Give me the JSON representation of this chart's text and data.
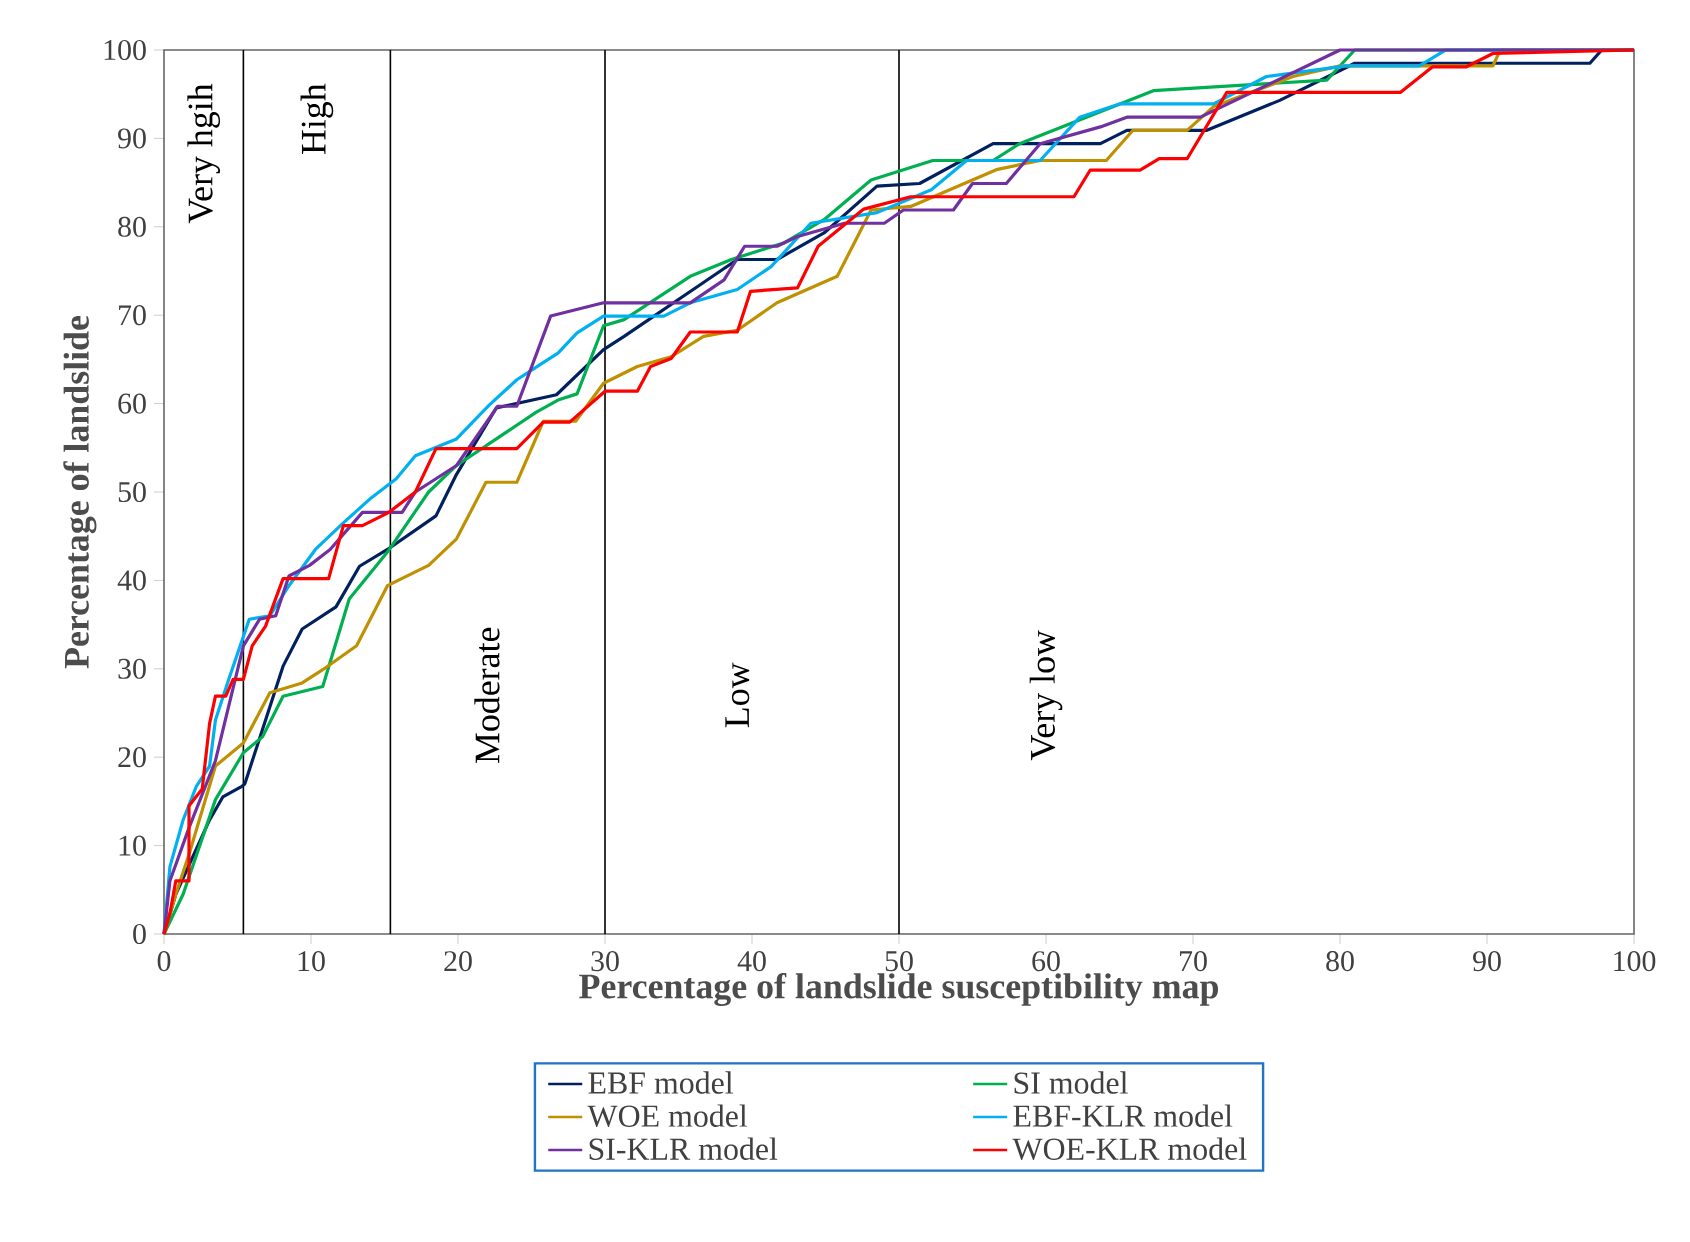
{
  "chart_data": {
    "type": "line",
    "xlabel": "Percentage of landslide susceptibility map",
    "ylabel": "Percentage of landslide",
    "xlim": [
      0,
      100
    ],
    "ylim": [
      0,
      100
    ],
    "xticks": [
      0,
      10,
      20,
      30,
      40,
      50,
      60,
      70,
      80,
      90,
      100
    ],
    "yticks": [
      0,
      10,
      20,
      30,
      40,
      50,
      60,
      70,
      80,
      90,
      100
    ],
    "legend": "bottom",
    "line_style": "solid",
    "ref_lines": [
      {
        "axis": "x",
        "value": 5.4,
        "color": "#000000"
      },
      {
        "axis": "x",
        "value": 15.4,
        "color": "#000000"
      },
      {
        "axis": "x",
        "value": 30,
        "color": "#000000"
      },
      {
        "axis": "x",
        "value": 50,
        "color": "#000000"
      }
    ],
    "annotations": [
      "Very hgih",
      "High",
      "Moderate",
      "Low",
      "Very low"
    ],
    "series": [
      {
        "name": "EBF model",
        "color": "#002060",
        "x": [
          0,
          0.8,
          3.1,
          4,
          5.3,
          5.5,
          8.1,
          9.4,
          11.7,
          13.3,
          15.2,
          18.5,
          19.9,
          22.6,
          26.7,
          29.9,
          31.3,
          36.7,
          39,
          41.7,
          44.9,
          48.5,
          51.4,
          56.4,
          63.7,
          65.5,
          70.9,
          75.9,
          81,
          97,
          97.8,
          100
        ],
        "values": [
          0,
          4.5,
          12.9,
          15.5,
          16.7,
          17,
          30.3,
          34.5,
          37,
          41.6,
          43.5,
          47.3,
          52,
          59.5,
          61,
          66.1,
          67.6,
          73.7,
          76.3,
          76.3,
          79.3,
          84.6,
          84.9,
          89.4,
          89.4,
          90.9,
          90.9,
          94.3,
          98.5,
          98.5,
          100,
          100
        ]
      },
      {
        "name": "SI model",
        "color": "#00b050",
        "x": [
          0,
          1.3,
          3.5,
          5.4,
          6.7,
          8.1,
          10.8,
          12.6,
          15.2,
          18,
          19.9,
          25.3,
          26.8,
          28.1,
          29.9,
          31.3,
          35.8,
          38.6,
          42.2,
          44.9,
          48.1,
          52.3,
          56.4,
          58.2,
          67.3,
          79.1,
          81,
          100
        ],
        "values": [
          0,
          4.5,
          15.2,
          20.5,
          22.3,
          26.9,
          28,
          37.9,
          43.2,
          50,
          53,
          59,
          60.4,
          61.1,
          68.8,
          69.5,
          74.4,
          76.3,
          78.2,
          80.8,
          85.3,
          87.5,
          87.5,
          89.4,
          95.4,
          96.6,
          100,
          100
        ]
      },
      {
        "name": "WOE model",
        "color": "#bf9000",
        "x": [
          0,
          0.8,
          1.7,
          3.5,
          5.4,
          7.2,
          9.4,
          10.8,
          13.1,
          15.2,
          18,
          19.9,
          21.9,
          24,
          25.8,
          28,
          29.9,
          32.2,
          34.5,
          36.7,
          39,
          41.7,
          45.8,
          48.1,
          50.8,
          56.7,
          59.6,
          64.1,
          65.9,
          69.6,
          71.4,
          76.8,
          80,
          90.4,
          90.9,
          100
        ],
        "values": [
          0,
          4.5,
          9,
          19,
          21.6,
          27.3,
          28.4,
          29.9,
          32.6,
          39.4,
          41.7,
          44.7,
          51.1,
          51.1,
          58,
          58,
          62.3,
          64.2,
          65.3,
          67.6,
          68.3,
          71.4,
          74.4,
          81.9,
          82.3,
          86.5,
          87.5,
          87.5,
          90.9,
          90.9,
          93.6,
          97,
          98.2,
          98.2,
          100,
          100
        ]
      },
      {
        "name": "EBF-KLR model",
        "color": "#00b0f0",
        "x": [
          0,
          0.4,
          1.3,
          2.2,
          3.1,
          3.5,
          4.4,
          5.8,
          7.2,
          8.5,
          10.3,
          12.2,
          14,
          15.8,
          17.1,
          19.9,
          22.1,
          24,
          25.4,
          26.8,
          28.1,
          29.9,
          34,
          35.8,
          39,
          41.3,
          44,
          48.5,
          52.2,
          54.6,
          59.6,
          62.3,
          65,
          71.4,
          75,
          80.4,
          85.4,
          87.2,
          100
        ],
        "values": [
          0,
          7.6,
          12.9,
          16.7,
          19,
          24.2,
          28.8,
          35.6,
          36,
          39.4,
          43.5,
          46.5,
          49.2,
          51.5,
          54.1,
          56,
          59.8,
          62.7,
          64.2,
          65.7,
          68,
          69.9,
          69.9,
          71.4,
          72.9,
          75.5,
          80.4,
          81.6,
          84.2,
          87.5,
          87.5,
          92.4,
          93.9,
          93.9,
          97,
          98.2,
          98.2,
          100,
          100
        ]
      },
      {
        "name": "SI-KLR model",
        "color": "#7030a0",
        "x": [
          0,
          0.4,
          1.7,
          3.5,
          5.4,
          6.5,
          7.6,
          8.5,
          9.9,
          11.3,
          13.5,
          16.2,
          17.1,
          19.9,
          22.7,
          24,
          26.3,
          29.9,
          35.8,
          38.1,
          39.5,
          41.7,
          43.1,
          46.3,
          49,
          50.3,
          53.7,
          55,
          57.3,
          59.6,
          63.7,
          65.5,
          70.5,
          80,
          100
        ],
        "values": [
          0,
          6,
          12,
          19.6,
          32.6,
          35.6,
          36,
          40.5,
          41.7,
          43.5,
          47.7,
          47.7,
          50,
          53,
          59.7,
          59.7,
          69.9,
          71.4,
          71.4,
          74,
          77.8,
          77.8,
          78.9,
          80.4,
          80.4,
          81.9,
          81.9,
          84.9,
          84.9,
          89.4,
          91.3,
          92.4,
          92.4,
          100,
          100
        ]
      },
      {
        "name": "WOE-KLR model",
        "color": "#ff0000",
        "x": [
          0,
          0.4,
          0.8,
          1.7,
          1.7,
          2.6,
          3.1,
          3.5,
          4.2,
          4.7,
          5.4,
          6,
          6.9,
          8.1,
          11.2,
          12.2,
          13.5,
          15.3,
          17.1,
          18.5,
          24,
          25.8,
          27.6,
          30,
          32.2,
          33.1,
          34.5,
          35.8,
          39,
          39.9,
          43.1,
          44.5,
          47.6,
          50.8,
          61.9,
          63,
          66.4,
          67.7,
          69.6,
          72.3,
          84.1,
          86.3,
          88.6,
          90.4,
          100
        ],
        "values": [
          0,
          2.3,
          6,
          6,
          14.5,
          16.4,
          23.8,
          26.9,
          26.9,
          28.8,
          28.8,
          32.6,
          34.8,
          40.2,
          40.2,
          46.2,
          46.2,
          47.7,
          50,
          54.9,
          54.9,
          57.9,
          57.9,
          61.4,
          61.4,
          64.2,
          65.1,
          68.1,
          68.1,
          72.7,
          73.1,
          77.8,
          82,
          83.4,
          83.4,
          86.4,
          86.4,
          87.7,
          87.7,
          95.2,
          95.2,
          98.1,
          98.1,
          99.6,
          100
        ]
      }
    ]
  }
}
